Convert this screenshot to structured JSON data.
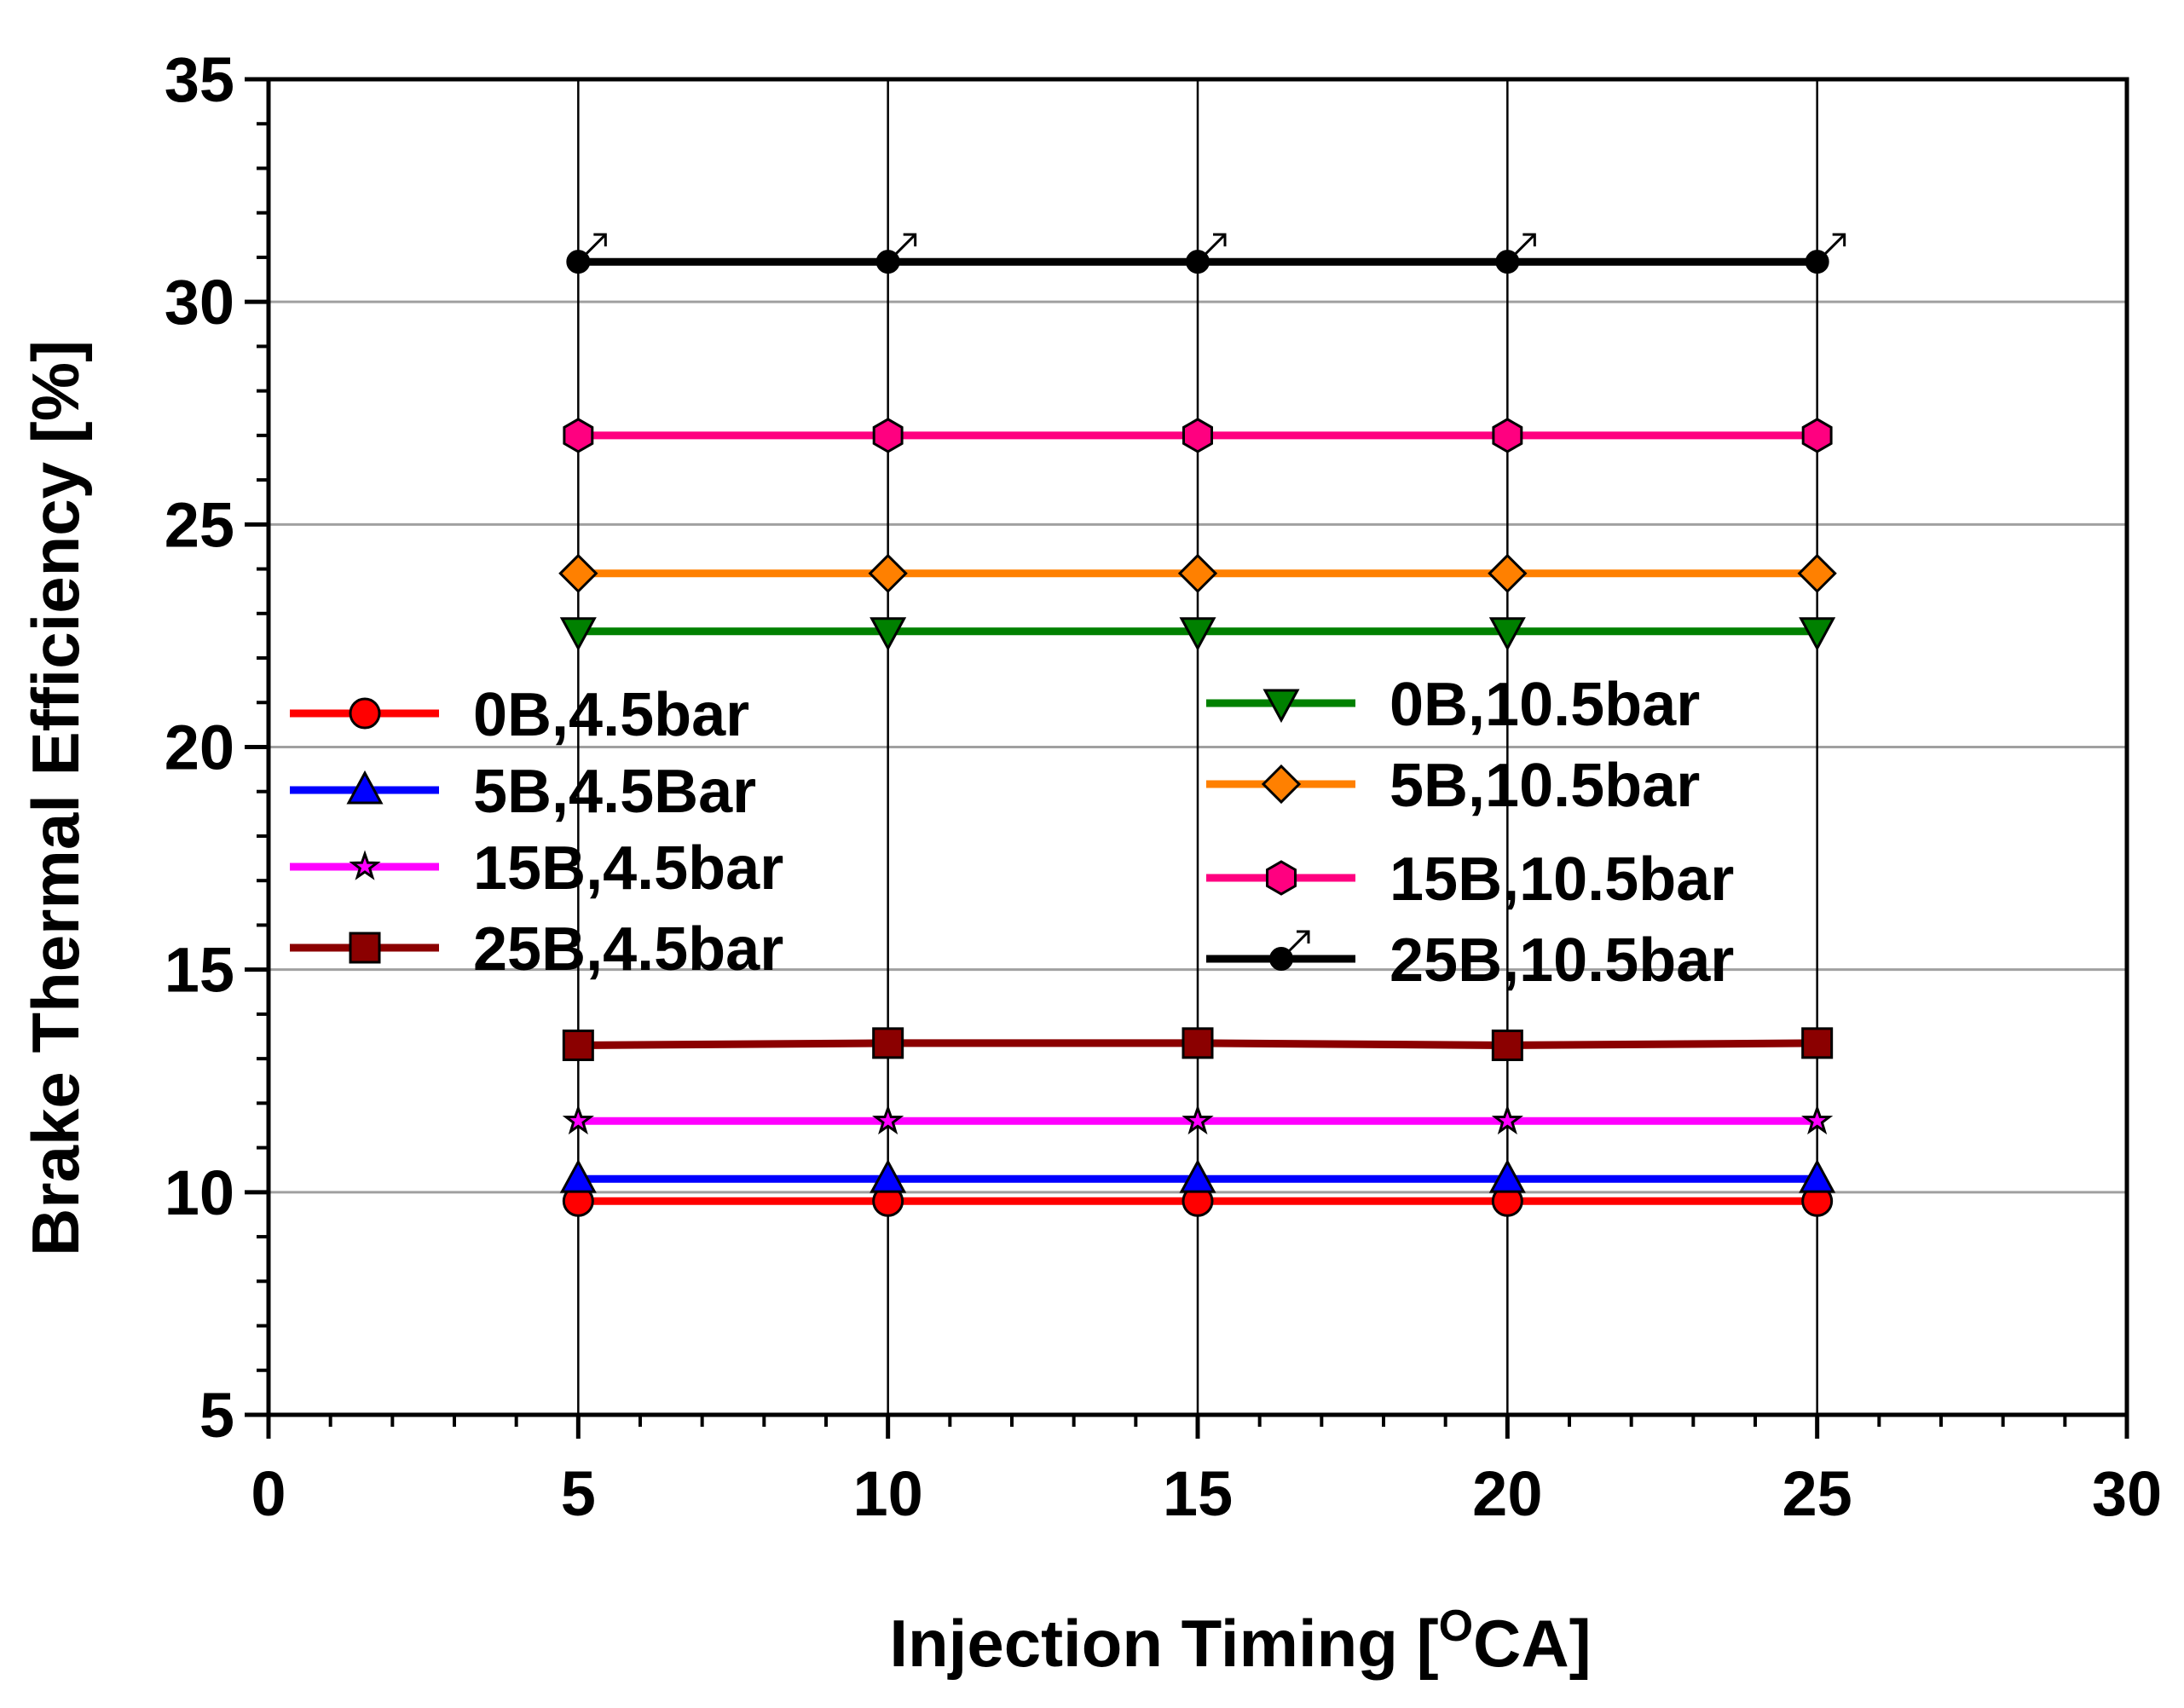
{
  "chart_data": {
    "type": "line",
    "title": "",
    "xlabel": "Injection Timing [",
    "xlabel_superscript": "O",
    "xlabel_suffix": "CA]",
    "ylabel": "Brake Thermal Efficiency [%]",
    "xlim": [
      0,
      30
    ],
    "ylim": [
      5,
      35
    ],
    "xticks": [
      0,
      5,
      10,
      15,
      20,
      25,
      30
    ],
    "yticks": [
      5,
      10,
      15,
      20,
      25,
      30,
      35
    ],
    "grid": "horizontal major at y=10,15,20,25,30; vertical lines at x=5,10,15,20,25",
    "x": [
      5,
      10,
      15,
      20,
      25
    ],
    "series": [
      {
        "name": "0B,4.5bar",
        "color": "#ff0000",
        "marker": "circle",
        "values": [
          9.8,
          9.8,
          9.8,
          9.8,
          9.8
        ]
      },
      {
        "name": "5B,4.5Bar",
        "color": "#0000ff",
        "marker": "triangle",
        "values": [
          10.3,
          10.3,
          10.3,
          10.3,
          10.3
        ]
      },
      {
        "name": "15B,4.5bar",
        "color": "#ff00ff",
        "marker": "star",
        "values": [
          11.6,
          11.6,
          11.6,
          11.6,
          11.6
        ]
      },
      {
        "name": "25B,4.5bar",
        "color": "#8b0000",
        "marker": "square",
        "values": [
          13.3,
          13.35,
          13.35,
          13.3,
          13.35
        ]
      },
      {
        "name": "0B,10.5bar",
        "color": "#008000",
        "marker": "triangle-down",
        "values": [
          22.6,
          22.6,
          22.6,
          22.6,
          22.6
        ]
      },
      {
        "name": "5B,10.5bar",
        "color": "#ff8000",
        "marker": "diamond",
        "values": [
          23.9,
          23.9,
          23.9,
          23.9,
          23.9
        ]
      },
      {
        "name": "15B,10.5bar",
        "color": "#ff0080",
        "marker": "hexagon",
        "values": [
          27.0,
          27.0,
          27.0,
          27.0,
          27.0
        ]
      },
      {
        "name": "25B,10.5bar",
        "color": "#000000",
        "marker": "male",
        "values": [
          30.9,
          30.9,
          30.9,
          30.9,
          30.9
        ]
      }
    ]
  }
}
